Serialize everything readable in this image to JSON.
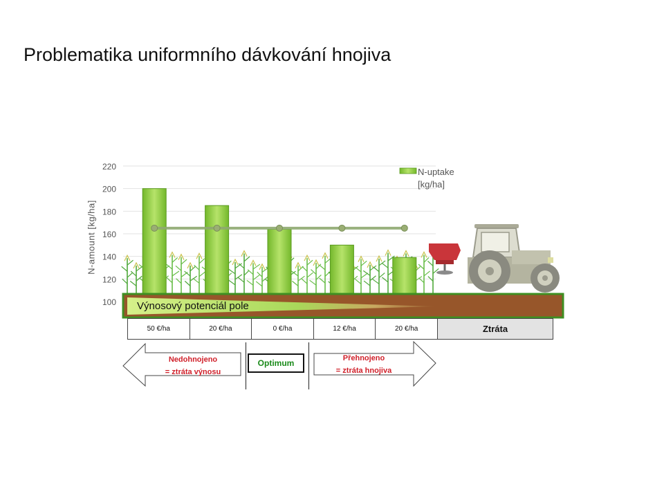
{
  "slide": {
    "title": "Problematika uniformního dávkování hnojiva"
  },
  "chart_data": {
    "type": "bar",
    "categories": [
      "50 €/ha",
      "20 €/ha",
      "0 €/ha",
      "12 €/ha",
      "20 €/ha"
    ],
    "series": [
      {
        "name": "N-uptake [kg/ha]",
        "values": [
          200,
          185,
          164,
          150,
          139
        ]
      }
    ],
    "uniform_line": {
      "values": [
        165,
        165,
        165,
        165,
        165
      ]
    },
    "ylabel": "N-amount [kg/ha]",
    "ylim": [
      100,
      220
    ],
    "yticks": [
      "220",
      "200",
      "180",
      "160",
      "140",
      "120",
      "100"
    ],
    "grid": true,
    "legend_placement": "top-right"
  },
  "legend": {
    "line1": "N-uptake",
    "line2": "[kg/ha]"
  },
  "soil_band": {
    "label": "Výnosový potenciál pole"
  },
  "cost_row": [
    "50 €/ha",
    "20 €/ha",
    "0 €/ha",
    "12 €/ha",
    "20 €/ha"
  ],
  "loss_label": "Ztráta",
  "left_arrow": {
    "line1": "Nedohnojeno",
    "line2": "= ztráta výnosu"
  },
  "optimum": "Optimum",
  "right_arrow": {
    "line1": "Přehnojeno",
    "line2": "= ztráta hnojiva"
  },
  "colors": {
    "bar": "#86c93c",
    "soil": "#97562a",
    "soil_border": "#3f8f22",
    "line": "#8ea870",
    "spreader": "#c9353a",
    "text_red": "#d0202a"
  },
  "icons": [
    "tractor-icon",
    "fertilizer-spreader-icon",
    "corn-plant-icon"
  ]
}
